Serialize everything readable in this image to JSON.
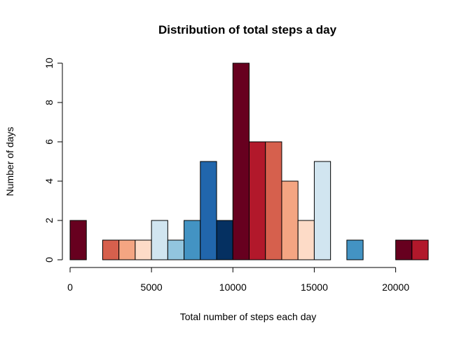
{
  "chart_data": {
    "type": "bar",
    "title": "Distribution of total steps a day",
    "xlabel": "Total number of steps each day",
    "ylabel": "Number of days",
    "xlim": [
      0,
      22000
    ],
    "ylim": [
      0,
      10
    ],
    "x_ticks": [
      0,
      5000,
      10000,
      15000,
      20000
    ],
    "y_ticks": [
      0,
      2,
      4,
      6,
      8,
      10
    ],
    "bin_width": 1000,
    "bins": [
      {
        "x0": 0,
        "x1": 1000,
        "count": 2,
        "color": "#67001F"
      },
      {
        "x0": 1000,
        "x1": 2000,
        "count": 0,
        "color": "#B2182B"
      },
      {
        "x0": 2000,
        "x1": 3000,
        "count": 1,
        "color": "#D6604D"
      },
      {
        "x0": 3000,
        "x1": 4000,
        "count": 1,
        "color": "#F4A582"
      },
      {
        "x0": 4000,
        "x1": 5000,
        "count": 1,
        "color": "#FDDBC7"
      },
      {
        "x0": 5000,
        "x1": 6000,
        "count": 2,
        "color": "#D1E5F0"
      },
      {
        "x0": 6000,
        "x1": 7000,
        "count": 1,
        "color": "#92C5DE"
      },
      {
        "x0": 7000,
        "x1": 8000,
        "count": 2,
        "color": "#4393C3"
      },
      {
        "x0": 8000,
        "x1": 9000,
        "count": 5,
        "color": "#2166AC"
      },
      {
        "x0": 9000,
        "x1": 10000,
        "count": 2,
        "color": "#053061"
      },
      {
        "x0": 10000,
        "x1": 11000,
        "count": 10,
        "color": "#67001F"
      },
      {
        "x0": 11000,
        "x1": 12000,
        "count": 6,
        "color": "#B2182B"
      },
      {
        "x0": 12000,
        "x1": 13000,
        "count": 6,
        "color": "#D6604D"
      },
      {
        "x0": 13000,
        "x1": 14000,
        "count": 4,
        "color": "#F4A582"
      },
      {
        "x0": 14000,
        "x1": 15000,
        "count": 2,
        "color": "#FDDBC7"
      },
      {
        "x0": 15000,
        "x1": 16000,
        "count": 5,
        "color": "#D1E5F0"
      },
      {
        "x0": 16000,
        "x1": 17000,
        "count": 0,
        "color": "#92C5DE"
      },
      {
        "x0": 17000,
        "x1": 18000,
        "count": 1,
        "color": "#4393C3"
      },
      {
        "x0": 18000,
        "x1": 19000,
        "count": 0,
        "color": "#2166AC"
      },
      {
        "x0": 19000,
        "x1": 20000,
        "count": 0,
        "color": "#053061"
      },
      {
        "x0": 20000,
        "x1": 21000,
        "count": 1,
        "color": "#67001F"
      },
      {
        "x0": 21000,
        "x1": 22000,
        "count": 1,
        "color": "#B2182B"
      }
    ]
  }
}
